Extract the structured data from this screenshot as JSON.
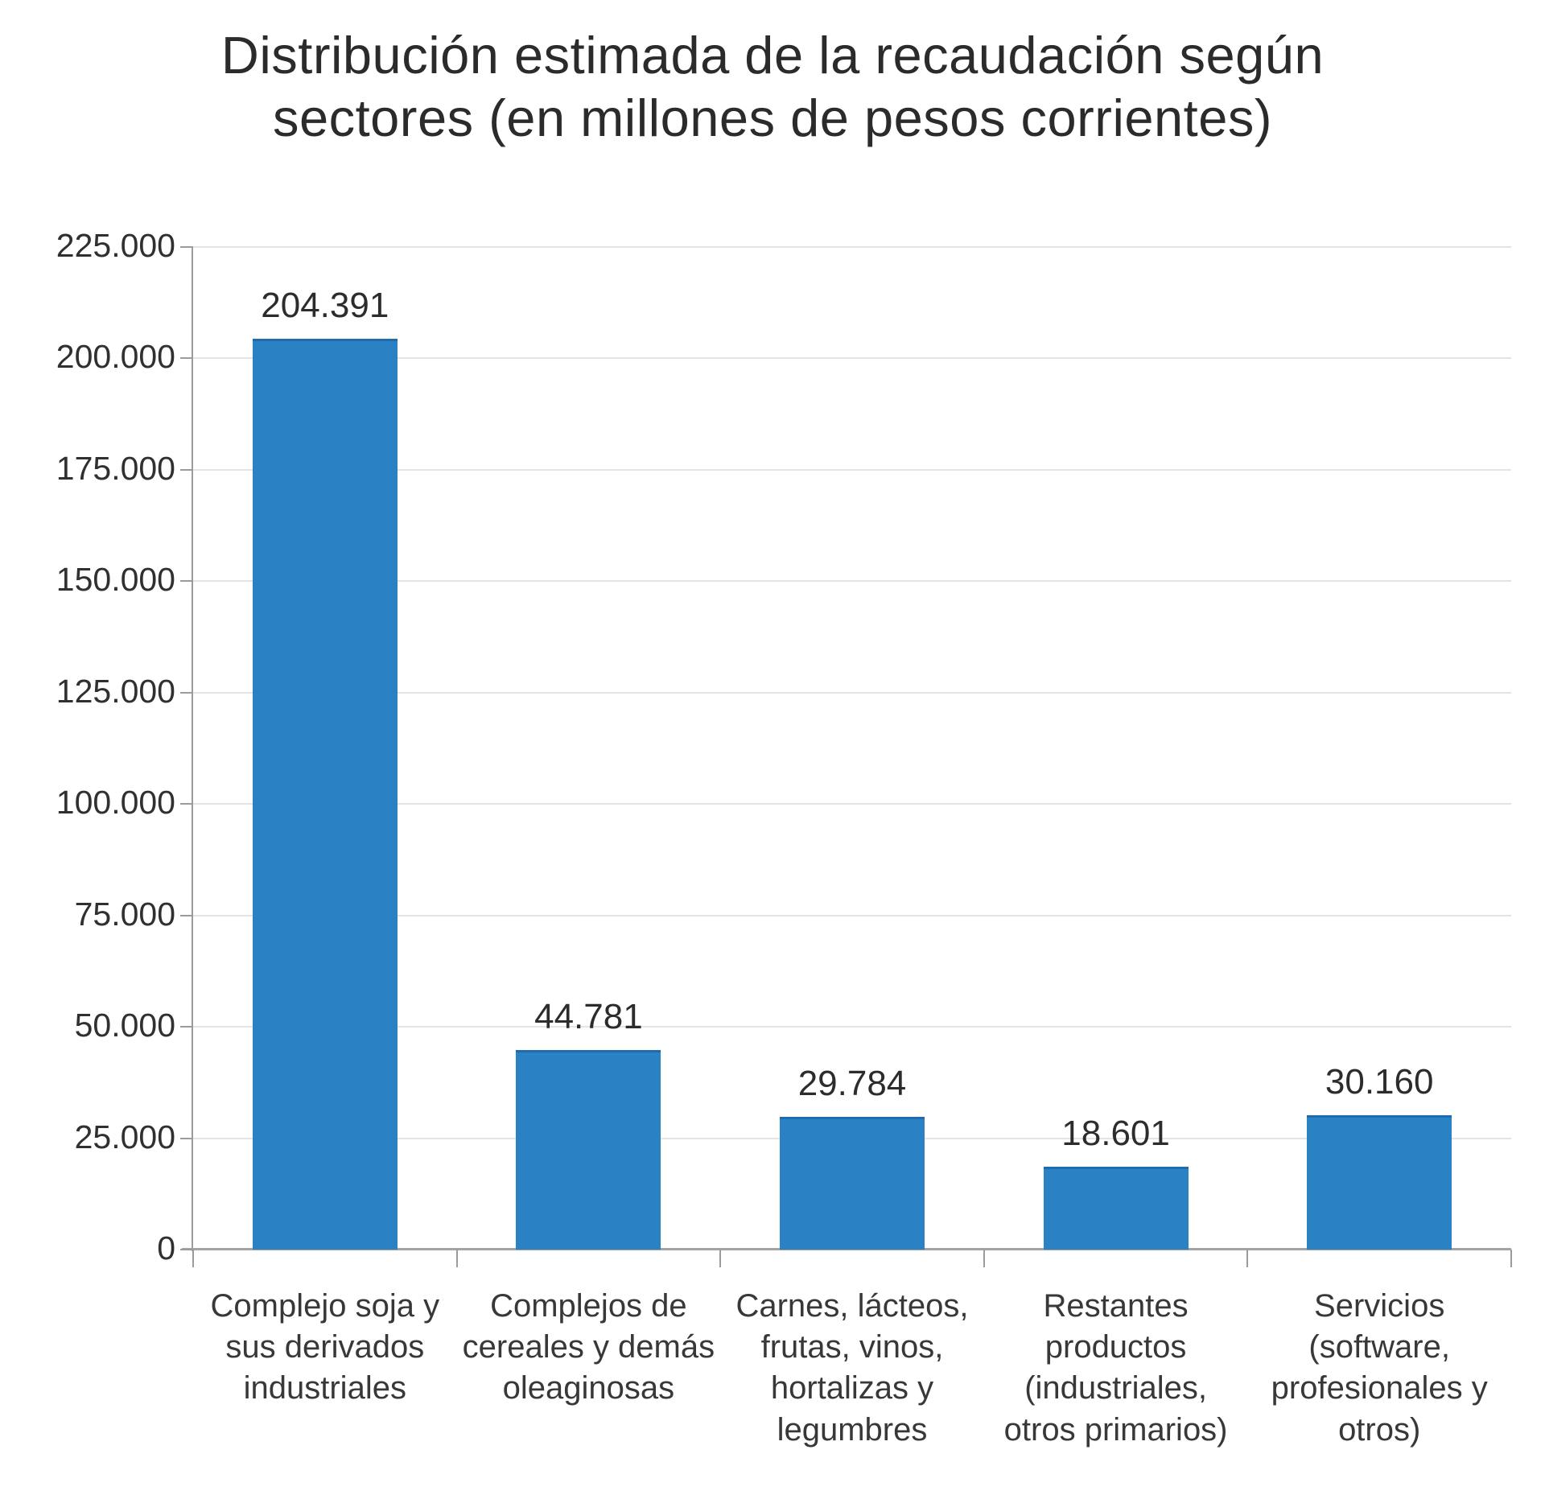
{
  "chart_data": {
    "type": "bar",
    "title": "Distribución estimada de la recaudación según\nsectores (en millones de pesos corrientes)",
    "categories": [
      "Complejo soja y\nsus derivados\nindustriales",
      "Complejos de\ncereales y demás\noleaginosas",
      "Carnes, lácteos,\nfrutas, vinos,\nhortalizas y\nlegumbres",
      "Restantes\nproductos\n(industriales,\notros primarios)",
      "Servicios\n(software,\nprofesionales y\notros)"
    ],
    "values": [
      204391,
      44781,
      29784,
      18601,
      30160
    ],
    "value_labels": [
      "204.391",
      "44.781",
      "29.784",
      "18.601",
      "30.160"
    ],
    "xlabel": "",
    "ylabel": "",
    "ylim": [
      0,
      225000
    ],
    "ytick_interval": 25000,
    "yticks": [
      {
        "value": 225000,
        "label": "225.000"
      },
      {
        "value": 200000,
        "label": "200.000"
      },
      {
        "value": 175000,
        "label": "175.000"
      },
      {
        "value": 150000,
        "label": "150.000"
      },
      {
        "value": 125000,
        "label": "125.000"
      },
      {
        "value": 100000,
        "label": "100.000"
      },
      {
        "value": 75000,
        "label": "75.000"
      },
      {
        "value": 50000,
        "label": "50.000"
      },
      {
        "value": 25000,
        "label": "25.000"
      },
      {
        "value": 0,
        "label": "0"
      }
    ],
    "grid": true,
    "legend": false,
    "bar_color": "#2a81c4",
    "bar_edge_color": "#1e6cae",
    "gridline_color": "#e4e4e4",
    "axis_color": "#9b9b9b"
  }
}
